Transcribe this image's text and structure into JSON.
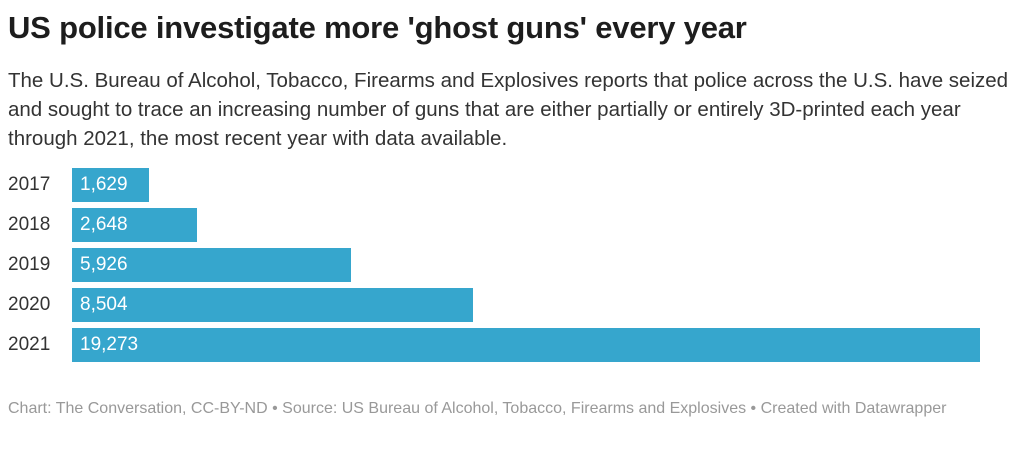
{
  "title": "US police investigate more 'ghost guns' every year",
  "subtitle": "The U.S. Bureau of Alcohol, Tobacco, Firearms and Explosives reports that police across the U.S. have seized and sought to trace an increasing number of guns that are either partially or entirely 3D-printed each year through 2021, the most recent year with data available.",
  "footer": "Chart: The Conversation, CC-BY-ND • Source: US Bureau of Alcohol, Tobacco, Firearms and Explosives • Created with Datawrapper",
  "chart_data": {
    "type": "bar",
    "orientation": "horizontal",
    "categories": [
      "2017",
      "2018",
      "2019",
      "2020",
      "2021"
    ],
    "values": [
      1629,
      2648,
      5926,
      8504,
      19273
    ],
    "labels": [
      "1,629",
      "2,648",
      "5,926",
      "8,504",
      "19,273"
    ],
    "xlim": [
      0,
      19273
    ],
    "grid": false,
    "bar_color": "#36a6cd"
  }
}
